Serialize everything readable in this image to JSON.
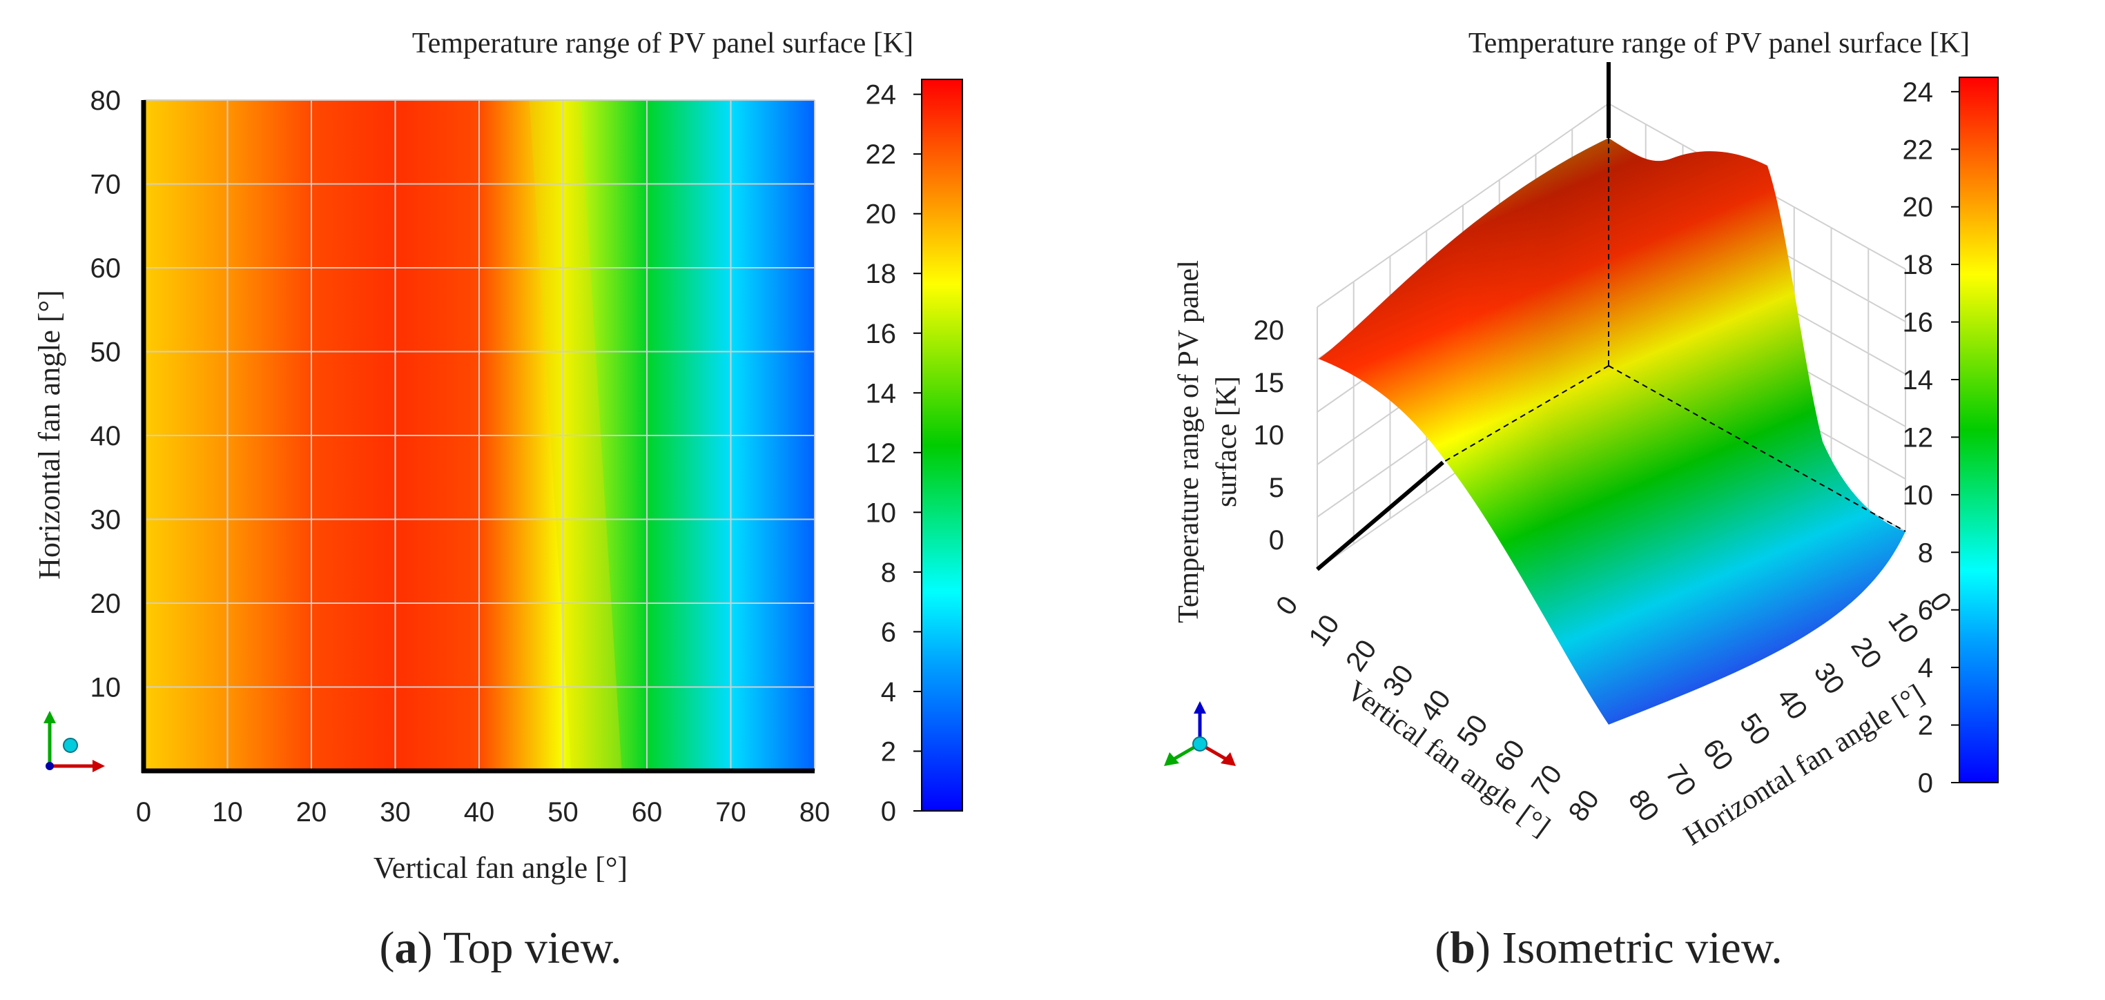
{
  "chart_data": [
    {
      "panel": "a",
      "type": "heatmap",
      "title": "Temperature range of PV panel surface [K]",
      "xlabel": "Vertical fan angle [°]",
      "ylabel": "Horizontal fan angle [°]",
      "x_ticks": [
        0,
        10,
        20,
        30,
        40,
        50,
        60,
        70,
        80
      ],
      "y_ticks": [
        10,
        20,
        30,
        40,
        50,
        60,
        70,
        80
      ],
      "xlim": [
        0,
        80
      ],
      "ylim": [
        0,
        80
      ],
      "grid": true,
      "z_profile_vs_vertical": {
        "x": [
          0,
          10,
          20,
          30,
          40,
          50,
          60,
          70,
          80
        ],
        "z": [
          19.0,
          20.5,
          22.5,
          23.2,
          22.5,
          17.5,
          11.5,
          6.5,
          3.0
        ]
      },
      "colorbar": {
        "min": 0,
        "max": 24.5,
        "ticks": [
          0,
          2,
          4,
          6,
          8,
          10,
          12,
          14,
          16,
          18,
          20,
          22,
          24
        ]
      },
      "caption_label": "a",
      "caption_text": " Top view."
    },
    {
      "panel": "b",
      "type": "surface",
      "title": "Temperature range of PV panel surface [K]",
      "zlabel_line1": "Temperature range of PV panel",
      "zlabel_line2": "surface [K]",
      "xlabel": "Vertical fan angle [°]",
      "ylabel": "Horizontal fan angle [°]",
      "x_ticks": [
        0,
        10,
        20,
        30,
        40,
        50,
        60,
        70,
        80
      ],
      "y_ticks": [
        0,
        10,
        20,
        30,
        40,
        50,
        60,
        70,
        80
      ],
      "z_ticks": [
        0,
        5,
        10,
        15,
        20
      ],
      "zlim": [
        0,
        25
      ],
      "colorbar": {
        "min": 0,
        "max": 24.5,
        "ticks": [
          0,
          2,
          4,
          6,
          8,
          10,
          12,
          14,
          16,
          18,
          20,
          22,
          24
        ]
      },
      "caption_label": "b",
      "caption_text": " Isometric view."
    }
  ],
  "colors": {
    "colormap": [
      "#0000ff",
      "#00ffff",
      "#00cc00",
      "#ffff00",
      "#ff8000",
      "#ff0000"
    ],
    "grid": "#cfcfcf",
    "axis": "#000000"
  },
  "icons": {
    "triad_a": "axes-triad-icon",
    "triad_b": "axes-triad-icon"
  }
}
